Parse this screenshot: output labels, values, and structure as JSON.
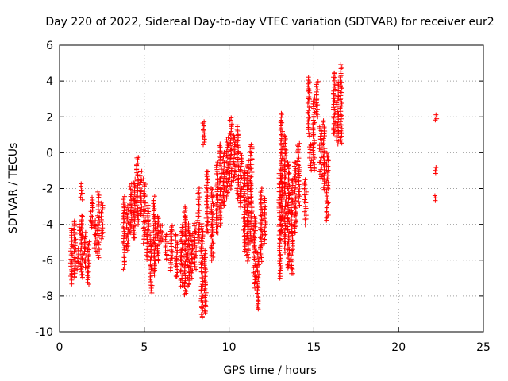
{
  "chart_data": {
    "type": "scatter",
    "title": "Day 220 of 2022, Sidereal Day-to-day VTEC variation (SDTVAR) for receiver eur2",
    "xlabel": "GPS time / hours",
    "ylabel": "SDTVAR / TECUs",
    "xlim": [
      0,
      25
    ],
    "ylim": [
      -10,
      6
    ],
    "xticks": [
      "0",
      "5",
      "10",
      "15",
      "20",
      "25"
    ],
    "yticks": [
      "-10",
      "-8",
      "-6",
      "-4",
      "-2",
      "0",
      "2",
      "4",
      "6"
    ],
    "grid": true,
    "marker": "+",
    "series": [
      {
        "name": "SDTVAR",
        "color": "#ff0000",
        "clusters": [
          {
            "x": 0.7,
            "ymin": -7.3,
            "ymax": -4.2
          },
          {
            "x": 0.9,
            "ymin": -7.0,
            "ymax": -3.8
          },
          {
            "x": 1.1,
            "ymin": -6.5,
            "ymax": -5.3
          },
          {
            "x": 1.2,
            "ymin": -4.5,
            "ymax": -4.0
          },
          {
            "x": 1.3,
            "ymin": -7.0,
            "ymax": -3.5
          },
          {
            "x": 1.3,
            "ymin": -2.6,
            "ymax": -1.8
          },
          {
            "x": 1.5,
            "ymin": -6.5,
            "ymax": -4.5
          },
          {
            "x": 1.7,
            "ymin": -7.3,
            "ymax": -5.0
          },
          {
            "x": 1.9,
            "ymin": -4.2,
            "ymax": -2.5
          },
          {
            "x": 2.1,
            "ymin": -5.5,
            "ymax": -3.8
          },
          {
            "x": 2.3,
            "ymin": -5.8,
            "ymax": -2.2
          },
          {
            "x": 2.5,
            "ymin": -4.8,
            "ymax": -2.8
          },
          {
            "x": 3.8,
            "ymin": -6.5,
            "ymax": -2.5
          },
          {
            "x": 4.0,
            "ymin": -5.5,
            "ymax": -3.0
          },
          {
            "x": 4.2,
            "ymin": -4.5,
            "ymax": -1.8
          },
          {
            "x": 4.4,
            "ymin": -4.8,
            "ymax": -1.5
          },
          {
            "x": 4.6,
            "ymin": -4.0,
            "ymax": -0.2
          },
          {
            "x": 4.8,
            "ymin": -3.5,
            "ymax": -1.0
          },
          {
            "x": 5.0,
            "ymin": -5.0,
            "ymax": -1.5
          },
          {
            "x": 5.2,
            "ymin": -6.0,
            "ymax": -3.0
          },
          {
            "x": 5.4,
            "ymin": -7.8,
            "ymax": -4.5
          },
          {
            "x": 5.6,
            "ymin": -6.8,
            "ymax": -2.5
          },
          {
            "x": 5.8,
            "ymin": -6.0,
            "ymax": -3.5
          },
          {
            "x": 6.0,
            "ymin": -5.0,
            "ymax": -4.0
          },
          {
            "x": 6.3,
            "ymin": -6.0,
            "ymax": -4.5
          },
          {
            "x": 6.6,
            "ymin": -6.5,
            "ymax": -4.0
          },
          {
            "x": 6.9,
            "ymin": -7.0,
            "ymax": -4.5
          },
          {
            "x": 7.2,
            "ymin": -7.5,
            "ymax": -4.0
          },
          {
            "x": 7.4,
            "ymin": -8.0,
            "ymax": -3.0
          },
          {
            "x": 7.6,
            "ymin": -7.5,
            "ymax": -4.0
          },
          {
            "x": 7.8,
            "ymin": -7.0,
            "ymax": -4.5
          },
          {
            "x": 8.0,
            "ymin": -6.5,
            "ymax": -4.0
          },
          {
            "x": 8.2,
            "ymin": -5.0,
            "ymax": -2.0
          },
          {
            "x": 8.4,
            "ymin": -9.2,
            "ymax": -4.0
          },
          {
            "x": 8.5,
            "ymin": 0.5,
            "ymax": 1.8
          },
          {
            "x": 8.6,
            "ymin": -9.0,
            "ymax": -5.5
          },
          {
            "x": 8.7,
            "ymin": -4.5,
            "ymax": -1.0
          },
          {
            "x": 9.0,
            "ymin": -6.0,
            "ymax": -2.0
          },
          {
            "x": 9.3,
            "ymin": -4.5,
            "ymax": -0.5
          },
          {
            "x": 9.5,
            "ymin": -4.0,
            "ymax": 0.5
          },
          {
            "x": 9.7,
            "ymin": -3.0,
            "ymax": 0.0
          },
          {
            "x": 9.9,
            "ymin": -2.5,
            "ymax": 0.8
          },
          {
            "x": 10.1,
            "ymin": -2.0,
            "ymax": 2.0
          },
          {
            "x": 10.3,
            "ymin": -1.5,
            "ymax": 1.0
          },
          {
            "x": 10.5,
            "ymin": -2.5,
            "ymax": 1.5
          },
          {
            "x": 10.7,
            "ymin": -3.0,
            "ymax": 0.0
          },
          {
            "x": 10.9,
            "ymin": -5.5,
            "ymax": -1.0
          },
          {
            "x": 11.1,
            "ymin": -6.0,
            "ymax": -0.5
          },
          {
            "x": 11.3,
            "ymin": -5.0,
            "ymax": 0.5
          },
          {
            "x": 11.5,
            "ymin": -7.5,
            "ymax": -3.5
          },
          {
            "x": 11.7,
            "ymin": -8.8,
            "ymax": -5.5
          },
          {
            "x": 11.9,
            "ymin": -6.0,
            "ymax": -2.0
          },
          {
            "x": 12.1,
            "ymin": -5.0,
            "ymax": -2.5
          },
          {
            "x": 13.0,
            "ymin": -7.0,
            "ymax": -1.0
          },
          {
            "x": 13.1,
            "ymin": -4.5,
            "ymax": 2.2
          },
          {
            "x": 13.3,
            "ymin": -5.5,
            "ymax": 1.0
          },
          {
            "x": 13.5,
            "ymin": -6.5,
            "ymax": -0.5
          },
          {
            "x": 13.7,
            "ymin": -6.8,
            "ymax": -1.5
          },
          {
            "x": 13.9,
            "ymin": -4.5,
            "ymax": -0.5
          },
          {
            "x": 14.1,
            "ymin": -3.0,
            "ymax": 0.5
          },
          {
            "x": 14.5,
            "ymin": -4.0,
            "ymax": -1.5
          },
          {
            "x": 14.7,
            "ymin": 1.0,
            "ymax": 4.2
          },
          {
            "x": 14.8,
            "ymin": -1.0,
            "ymax": 0.5
          },
          {
            "x": 15.0,
            "ymin": -1.0,
            "ymax": 3.0
          },
          {
            "x": 15.2,
            "ymin": 2.0,
            "ymax": 4.0
          },
          {
            "x": 15.4,
            "ymin": -1.5,
            "ymax": 1.5
          },
          {
            "x": 15.6,
            "ymin": -2.0,
            "ymax": 1.8
          },
          {
            "x": 15.8,
            "ymin": -3.8,
            "ymax": 0.0
          },
          {
            "x": 16.2,
            "ymin": 1.0,
            "ymax": 4.5
          },
          {
            "x": 16.4,
            "ymin": 0.5,
            "ymax": 4.0
          },
          {
            "x": 16.6,
            "ymin": 0.5,
            "ymax": 4.9
          },
          {
            "x": 22.2,
            "ymin": 1.8,
            "ymax": 2.1
          },
          {
            "x": 22.2,
            "ymin": -1.1,
            "ymax": -0.8
          },
          {
            "x": 22.2,
            "ymin": -2.6,
            "ymax": -2.4
          }
        ]
      }
    ]
  }
}
